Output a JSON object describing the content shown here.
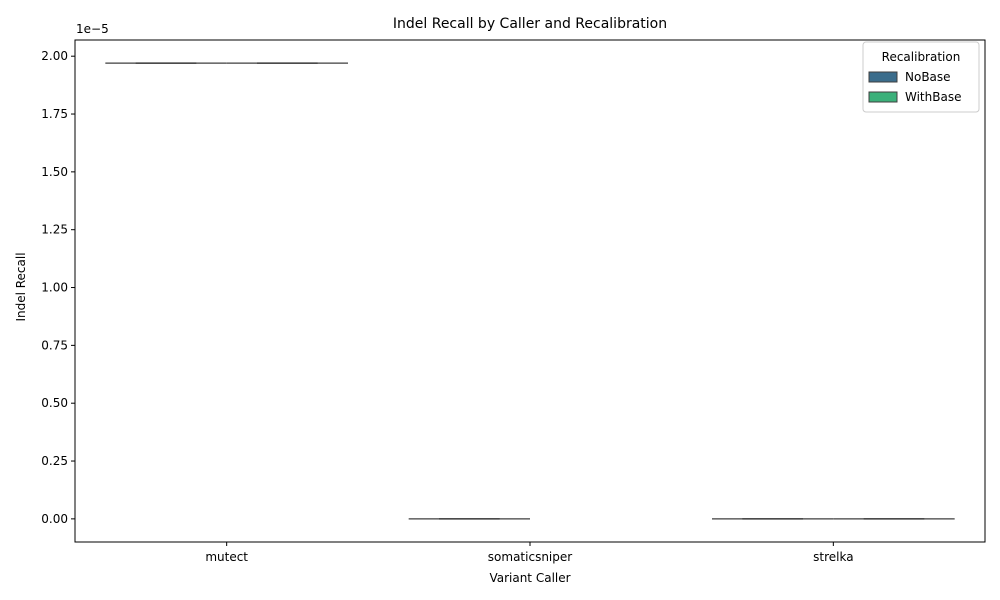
{
  "chart_data": {
    "type": "box",
    "title": "Indel Recall by Caller and Recalibration",
    "xlabel": "Variant Caller",
    "ylabel": "Indel Recall",
    "offset_text": "1e−5",
    "ylim": [
      -0.1,
      2.07
    ],
    "y_ticks": [
      0.0,
      0.25,
      0.5,
      0.75,
      1.0,
      1.25,
      1.5,
      1.75,
      2.0
    ],
    "y_tick_labels": [
      "0.00",
      "0.25",
      "0.50",
      "0.75",
      "1.00",
      "1.25",
      "1.50",
      "1.75",
      "2.00"
    ],
    "categories": [
      "mutect",
      "somaticsniper",
      "strelka"
    ],
    "legend": {
      "title": "Recalibration",
      "placement": "top-right"
    },
    "series": [
      {
        "name": "NoBase",
        "color": "#3b6d8c",
        "values": [
          1.97,
          0.0,
          0.0
        ]
      },
      {
        "name": "WithBase",
        "color": "#3bb07a",
        "values": [
          1.97,
          null,
          0.0
        ]
      }
    ]
  }
}
